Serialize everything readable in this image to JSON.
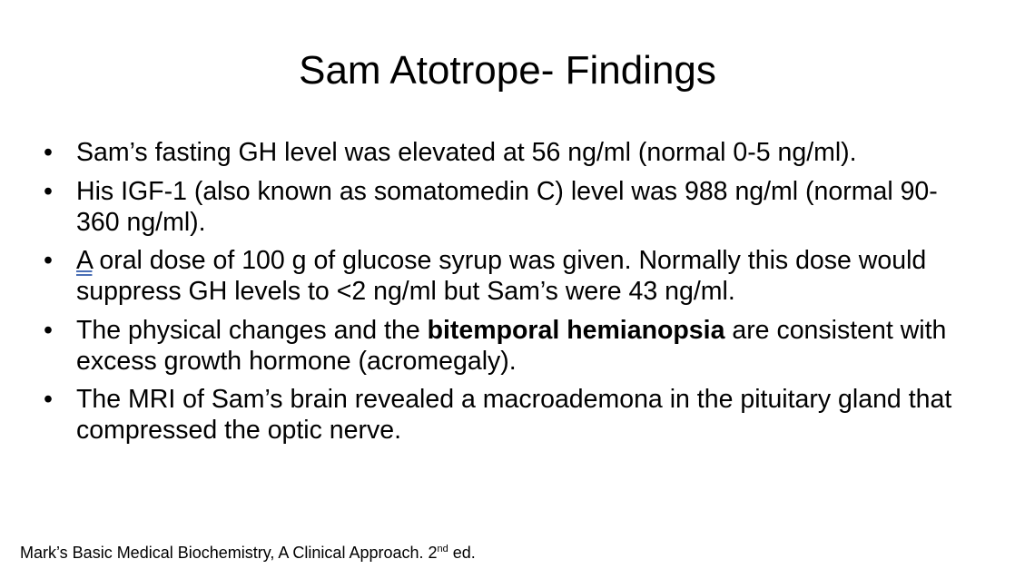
{
  "slide": {
    "title": "Sam Atotrope- Findings",
    "bullet_char": "•",
    "bullets": [
      {
        "text": "Sam’s fasting GH level was elevated at 56 ng/ml (normal 0-5 ng/ml)."
      },
      {
        "text": "His IGF-1 (also known as somatomedin C) level was 988 ng/ml (normal 90-360 ng/ml)."
      },
      {
        "first_word": "A",
        "rest": " oral dose of 100 g of glucose syrup was given. Normally this dose would suppress GH levels to <2 ng/ml but Sam’s were 43 ng/ml."
      },
      {
        "before": "The physical changes and the ",
        "bold": "bitemporal hemianopsia",
        "after": " are consistent with excess growth hormone (acromegaly)."
      },
      {
        "text": "The MRI of Sam’s brain revealed a macroademona in the pituitary gland that compressed the optic nerve."
      }
    ],
    "citation": {
      "main": "Mark’s Basic Medical Biochemistry, A Clinical Approach. 2",
      "superscript": "nd",
      "suffix": " ed."
    }
  }
}
